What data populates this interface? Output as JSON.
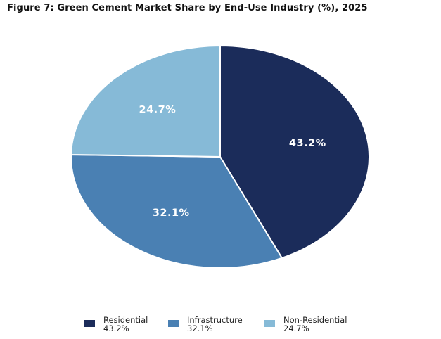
{
  "chart_data": {
    "type": "pie",
    "title": "Figure 7: Green Cement Market Share by End-Use Industry (%), 2025",
    "slices": [
      {
        "label": "Residential",
        "value": 43.2,
        "display": "43.2%",
        "color": "#1b2c5a"
      },
      {
        "label": "Infrastructure",
        "value": 32.1,
        "display": "32.1%",
        "color": "#4a80b3"
      },
      {
        "label": "Non-Residential",
        "value": 24.7,
        "display": "24.7%",
        "color": "#86bad7"
      }
    ],
    "start_angle": "12 o'clock",
    "direction": "clockwise",
    "legend_position": "bottom"
  }
}
